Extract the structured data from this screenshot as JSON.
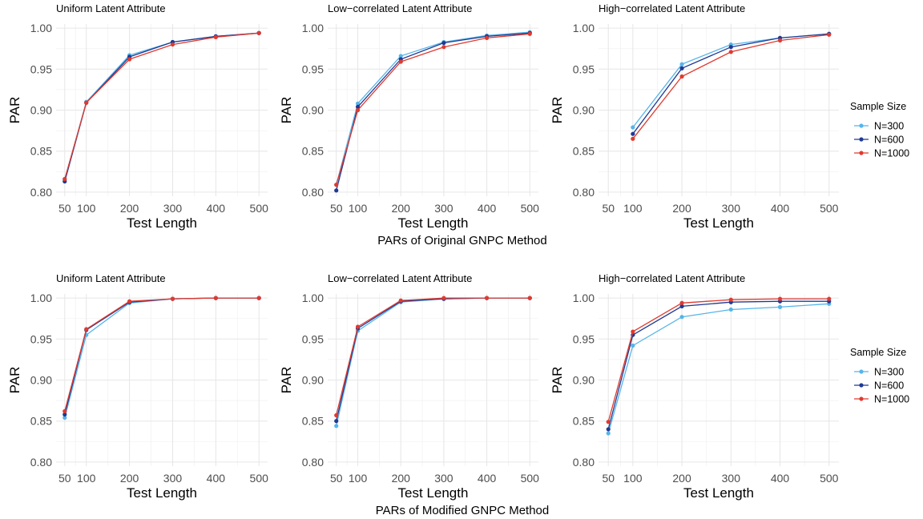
{
  "legend": {
    "title": "Sample Size",
    "items": [
      {
        "label": "N=300",
        "color": "#56B4E9"
      },
      {
        "label": "N=600",
        "color": "#1F3A93"
      },
      {
        "label": "N=1000",
        "color": "#E03A2F"
      }
    ]
  },
  "rows": [
    {
      "caption": "PARs of Original GNPC Method"
    },
    {
      "caption": "PARs of Modified GNPC Method"
    }
  ],
  "chart_data": [
    {
      "type": "line",
      "row": 0,
      "col": 0,
      "title": "Uniform Latent Attribute",
      "xlabel": "Test Length",
      "ylabel": "PAR",
      "xticks": [
        50,
        100,
        200,
        300,
        400,
        500
      ],
      "yticks": [
        0.8,
        0.85,
        0.9,
        0.95,
        1.0
      ],
      "xlim": [
        30,
        520
      ],
      "ylim": [
        0.795,
        1.005
      ],
      "x": [
        50,
        100,
        200,
        300,
        400,
        500
      ],
      "series": [
        {
          "name": "N=300",
          "values": [
            0.815,
            0.91,
            0.967,
            0.983,
            0.99,
            0.994
          ]
        },
        {
          "name": "N=600",
          "values": [
            0.813,
            0.909,
            0.965,
            0.983,
            0.99,
            0.994
          ]
        },
        {
          "name": "N=1000",
          "values": [
            0.816,
            0.909,
            0.962,
            0.98,
            0.989,
            0.994
          ]
        }
      ]
    },
    {
      "type": "line",
      "row": 0,
      "col": 1,
      "title": "Low−correlated Latent Attribute",
      "xlabel": "Test Length",
      "ylabel": "PAR",
      "xticks": [
        50,
        100,
        200,
        300,
        400,
        500
      ],
      "yticks": [
        0.8,
        0.85,
        0.9,
        0.95,
        1.0
      ],
      "xlim": [
        30,
        520
      ],
      "ylim": [
        0.795,
        1.005
      ],
      "x": [
        50,
        100,
        200,
        300,
        400,
        500
      ],
      "series": [
        {
          "name": "N=300",
          "values": [
            0.809,
            0.908,
            0.966,
            0.983,
            0.991,
            0.995
          ]
        },
        {
          "name": "N=600",
          "values": [
            0.802,
            0.904,
            0.962,
            0.982,
            0.99,
            0.994
          ]
        },
        {
          "name": "N=1000",
          "values": [
            0.809,
            0.9,
            0.959,
            0.977,
            0.988,
            0.993
          ]
        }
      ]
    },
    {
      "type": "line",
      "row": 0,
      "col": 2,
      "title": "High−correlated Latent Attribute",
      "xlabel": "Test Length",
      "ylabel": "PAR",
      "xticks": [
        50,
        100,
        200,
        300,
        400,
        500
      ],
      "yticks": [
        0.8,
        0.85,
        0.9,
        0.95,
        1.0
      ],
      "xlim": [
        30,
        520
      ],
      "ylim": [
        0.795,
        1.005
      ],
      "x": [
        100,
        200,
        300,
        400,
        500
      ],
      "series": [
        {
          "name": "N=300",
          "values": [
            0.879,
            0.956,
            0.98,
            0.988,
            0.993
          ]
        },
        {
          "name": "N=600",
          "values": [
            0.871,
            0.951,
            0.977,
            0.988,
            0.993
          ]
        },
        {
          "name": "N=1000",
          "values": [
            0.865,
            0.941,
            0.971,
            0.985,
            0.992
          ]
        }
      ]
    },
    {
      "type": "line",
      "row": 1,
      "col": 0,
      "title": "Uniform Latent Attribute",
      "xlabel": "Test Length",
      "ylabel": "PAR",
      "xticks": [
        50,
        100,
        200,
        300,
        400,
        500
      ],
      "yticks": [
        0.8,
        0.85,
        0.9,
        0.95,
        1.0
      ],
      "xlim": [
        30,
        520
      ],
      "ylim": [
        0.795,
        1.005
      ],
      "x": [
        50,
        100,
        200,
        300,
        400,
        500
      ],
      "series": [
        {
          "name": "N=300",
          "values": [
            0.854,
            0.955,
            0.994,
            0.999,
            1.0,
            1.0
          ]
        },
        {
          "name": "N=600",
          "values": [
            0.858,
            0.961,
            0.995,
            0.999,
            1.0,
            1.0
          ]
        },
        {
          "name": "N=1000",
          "values": [
            0.862,
            0.962,
            0.996,
            0.999,
            1.0,
            1.0
          ]
        }
      ]
    },
    {
      "type": "line",
      "row": 1,
      "col": 1,
      "title": "Low−correlated Latent Attribute",
      "xlabel": "Test Length",
      "ylabel": "PAR",
      "xticks": [
        50,
        100,
        200,
        300,
        400,
        500
      ],
      "yticks": [
        0.8,
        0.85,
        0.9,
        0.95,
        1.0
      ],
      "xlim": [
        30,
        520
      ],
      "ylim": [
        0.795,
        1.005
      ],
      "x": [
        50,
        100,
        200,
        300,
        400,
        500
      ],
      "series": [
        {
          "name": "N=300",
          "values": [
            0.844,
            0.96,
            0.995,
            0.999,
            1.0,
            1.0
          ]
        },
        {
          "name": "N=600",
          "values": [
            0.85,
            0.963,
            0.996,
            0.999,
            1.0,
            1.0
          ]
        },
        {
          "name": "N=1000",
          "values": [
            0.857,
            0.965,
            0.997,
            1.0,
            1.0,
            1.0
          ]
        }
      ]
    },
    {
      "type": "line",
      "row": 1,
      "col": 2,
      "title": "High−correlated Latent Attribute",
      "xlabel": "Test Length",
      "ylabel": "PAR",
      "xticks": [
        50,
        100,
        200,
        300,
        400,
        500
      ],
      "yticks": [
        0.8,
        0.85,
        0.9,
        0.95,
        1.0
      ],
      "xlim": [
        30,
        520
      ],
      "ylim": [
        0.795,
        1.005
      ],
      "x": [
        50,
        100,
        200,
        300,
        400,
        500
      ],
      "series": [
        {
          "name": "N=300",
          "values": [
            0.835,
            0.942,
            0.977,
            0.986,
            0.989,
            0.993
          ]
        },
        {
          "name": "N=600",
          "values": [
            0.84,
            0.955,
            0.99,
            0.995,
            0.996,
            0.996
          ]
        },
        {
          "name": "N=1000",
          "values": [
            0.849,
            0.959,
            0.994,
            0.998,
            0.999,
            0.999
          ]
        }
      ]
    }
  ]
}
